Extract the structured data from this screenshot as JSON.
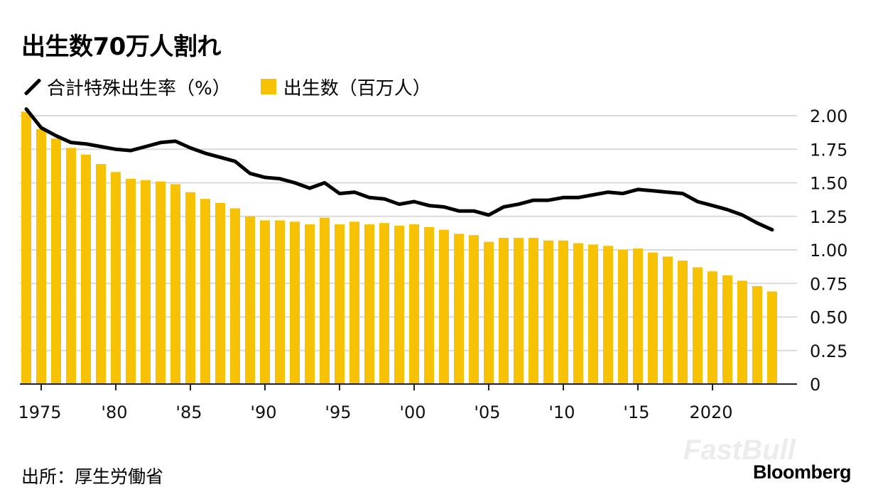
{
  "title": "出生数70万人割れ",
  "legend": {
    "line_label": "合計特殊出生率（%）",
    "bar_label": "出生数（百万人）"
  },
  "source": "出所：厚生労働省",
  "brand": "Bloomberg",
  "watermark": "FastBull",
  "colors": {
    "bar": "#F8C204",
    "line": "#000000",
    "grid": "#d9d9d9"
  },
  "chart_data": {
    "type": "bar",
    "x": [
      1974,
      1975,
      1976,
      1977,
      1978,
      1979,
      1980,
      1981,
      1982,
      1983,
      1984,
      1985,
      1986,
      1987,
      1988,
      1989,
      1990,
      1991,
      1992,
      1993,
      1994,
      1995,
      1996,
      1997,
      1998,
      1999,
      2000,
      2001,
      2002,
      2003,
      2004,
      2005,
      2006,
      2007,
      2008,
      2009,
      2010,
      2011,
      2012,
      2013,
      2014,
      2015,
      2016,
      2017,
      2018,
      2019,
      2020,
      2021,
      2022,
      2023,
      2024
    ],
    "x_ticks": [
      {
        "value": 1975,
        "label": "1975"
      },
      {
        "value": 1980,
        "label": "'80"
      },
      {
        "value": 1985,
        "label": "'85"
      },
      {
        "value": 1990,
        "label": "'90"
      },
      {
        "value": 1995,
        "label": "'95"
      },
      {
        "value": 2000,
        "label": "'00"
      },
      {
        "value": 2005,
        "label": "'05"
      },
      {
        "value": 2010,
        "label": "'10"
      },
      {
        "value": 2015,
        "label": "'15"
      },
      {
        "value": 2020,
        "label": "2020"
      }
    ],
    "y_ticks": [
      "0",
      "0.25",
      "0.50",
      "0.75",
      "1.00",
      "1.25",
      "1.50",
      "1.75",
      "2.00"
    ],
    "ylim": [
      0,
      2.0
    ],
    "series": [
      {
        "name": "出生数（百万人）",
        "type": "bar",
        "values": [
          2.03,
          1.9,
          1.83,
          1.76,
          1.71,
          1.64,
          1.58,
          1.53,
          1.52,
          1.51,
          1.49,
          1.43,
          1.38,
          1.35,
          1.31,
          1.25,
          1.22,
          1.22,
          1.21,
          1.19,
          1.24,
          1.19,
          1.21,
          1.19,
          1.2,
          1.18,
          1.19,
          1.17,
          1.15,
          1.12,
          1.11,
          1.06,
          1.09,
          1.09,
          1.09,
          1.07,
          1.07,
          1.05,
          1.04,
          1.03,
          1.0,
          1.01,
          0.98,
          0.95,
          0.92,
          0.87,
          0.84,
          0.81,
          0.77,
          0.73,
          0.69
        ]
      },
      {
        "name": "合計特殊出生率（%）",
        "type": "line",
        "values": [
          2.05,
          1.91,
          1.85,
          1.8,
          1.79,
          1.77,
          1.75,
          1.74,
          1.77,
          1.8,
          1.81,
          1.76,
          1.72,
          1.69,
          1.66,
          1.57,
          1.54,
          1.53,
          1.5,
          1.46,
          1.5,
          1.42,
          1.43,
          1.39,
          1.38,
          1.34,
          1.36,
          1.33,
          1.32,
          1.29,
          1.29,
          1.26,
          1.32,
          1.34,
          1.37,
          1.37,
          1.39,
          1.39,
          1.41,
          1.43,
          1.42,
          1.45,
          1.44,
          1.43,
          1.42,
          1.36,
          1.33,
          1.3,
          1.26,
          1.2,
          1.15
        ]
      }
    ],
    "grid": true,
    "legend_position": "top-left"
  }
}
